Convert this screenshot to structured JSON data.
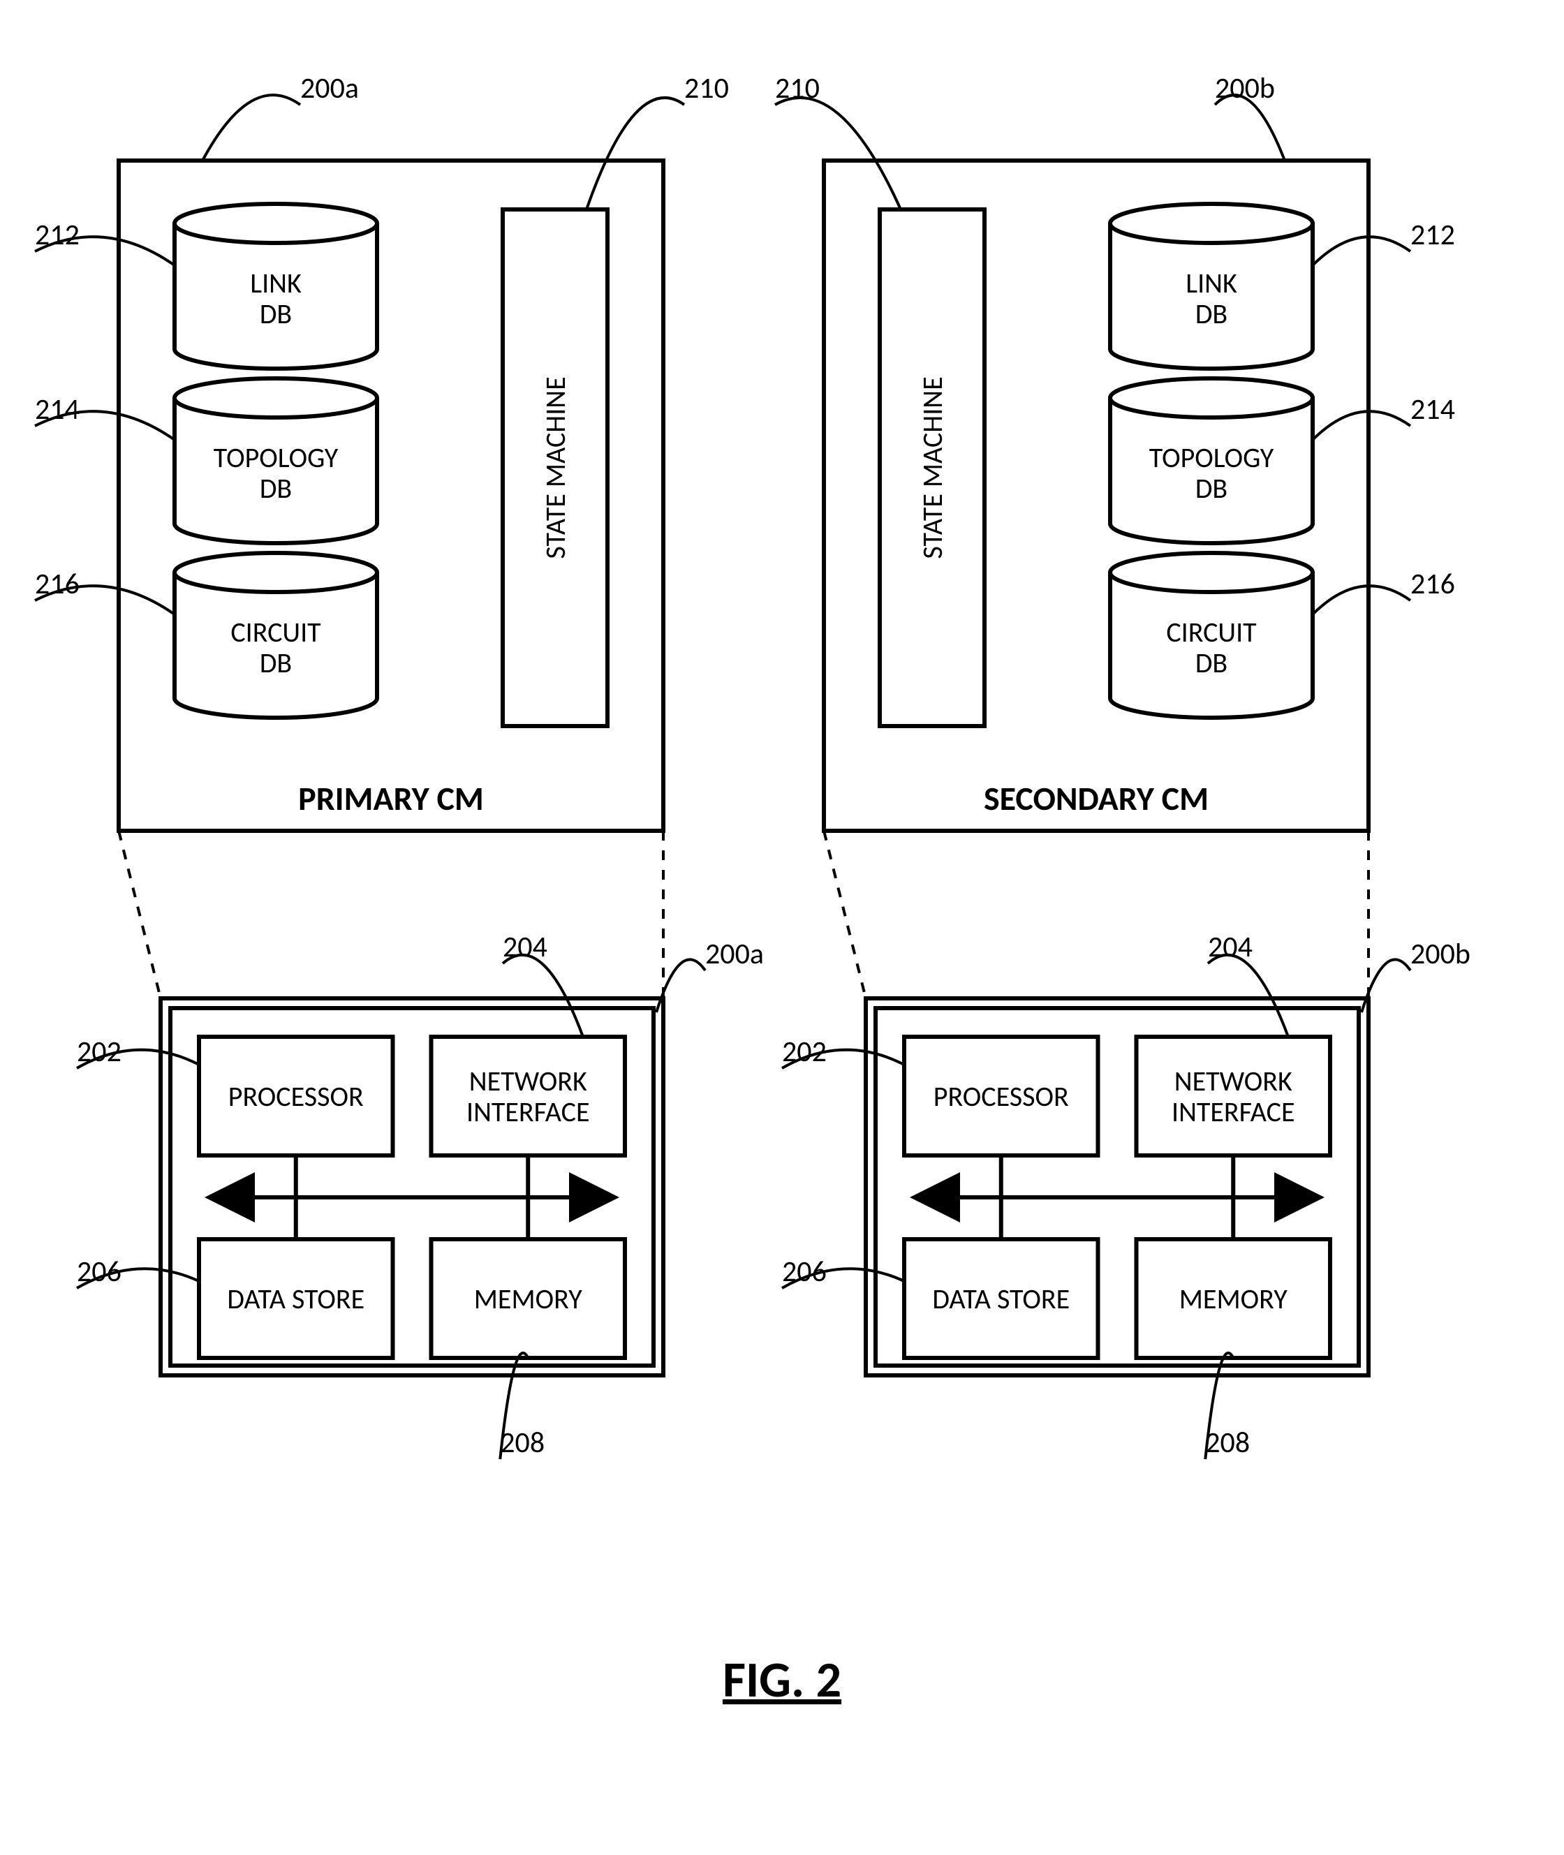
{
  "figure_title": "FIG. 2",
  "colors": {
    "stroke": "#000000",
    "bg": "#ffffff"
  },
  "stroke_widths": {
    "heavy": 6,
    "light": 4
  },
  "cm_units": [
    {
      "caption": "PRIMARY CM",
      "outer_ref": "200a",
      "state_machine": {
        "label": "STATE MACHINE",
        "ref": "210",
        "side": "right"
      },
      "dbs": [
        {
          "label1": "LINK",
          "label2": "DB",
          "ref": "212"
        },
        {
          "label1": "TOPOLOGY",
          "label2": "DB",
          "ref": "214"
        },
        {
          "label1": "CIRCUIT",
          "label2": "DB",
          "ref": "216"
        }
      ],
      "hw_ref": "200a",
      "hw": {
        "processor": {
          "label": "PROCESSOR",
          "ref": "202"
        },
        "nic": {
          "label1": "NETWORK",
          "label2": "INTERFACE",
          "ref": "204"
        },
        "datastore": {
          "label": "DATA STORE",
          "ref": "206"
        },
        "memory": {
          "label": "MEMORY",
          "ref": "208"
        }
      }
    },
    {
      "caption": "SECONDARY CM",
      "outer_ref": "200b",
      "state_machine": {
        "label": "STATE MACHINE",
        "ref": "210",
        "side": "left"
      },
      "dbs": [
        {
          "label1": "LINK",
          "label2": "DB",
          "ref": "212"
        },
        {
          "label1": "TOPOLOGY",
          "label2": "DB",
          "ref": "214"
        },
        {
          "label1": "CIRCUIT",
          "label2": "DB",
          "ref": "216"
        }
      ],
      "hw_ref": "200b",
      "hw": {
        "processor": {
          "label": "PROCESSOR",
          "ref": "202"
        },
        "nic": {
          "label1": "NETWORK",
          "label2": "INTERFACE",
          "ref": "204"
        },
        "datastore": {
          "label": "DATA STORE",
          "ref": "206"
        },
        "memory": {
          "label": "MEMORY",
          "ref": "208"
        }
      }
    }
  ]
}
